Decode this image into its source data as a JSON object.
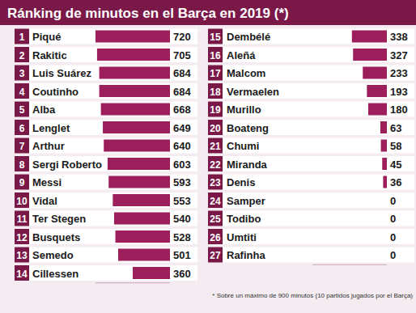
{
  "chart_data": {
    "type": "bar",
    "orientation": "horizontal",
    "title": "Ránking de minutos en el Barça en 2019 (*)",
    "categories": [
      "Piqué",
      "Rakitic",
      "Luis Suárez",
      "Coutinho",
      "Alba",
      "Lenglet",
      "Arthur",
      "Sergi Roberto",
      "Messi",
      "Vidal",
      "Ter Stegen",
      "Busquets",
      "Semedo",
      "Cillessen",
      "Dembélé",
      "Aleñá",
      "Malcom",
      "Vermaelen",
      "Murillo",
      "Boateng",
      "Chumi",
      "Miranda",
      "Denis",
      "Samper",
      "Todibo",
      "Umtiti",
      "Rafinha"
    ],
    "ranks": [
      1,
      2,
      3,
      4,
      5,
      6,
      7,
      8,
      9,
      10,
      11,
      12,
      13,
      14,
      15,
      16,
      17,
      18,
      19,
      20,
      21,
      22,
      23,
      24,
      25,
      26,
      27
    ],
    "values": [
      720,
      705,
      684,
      684,
      668,
      649,
      640,
      603,
      593,
      553,
      540,
      528,
      501,
      360,
      338,
      327,
      233,
      193,
      180,
      63,
      58,
      45,
      36,
      0,
      0,
      0,
      0
    ],
    "color": "#9c1f5c",
    "xlim": [
      0,
      720
    ],
    "tick_labels": false,
    "data_labels": true,
    "annotations": [
      "* Sobre un máximo de 900 minutos (10 partidos jugados por el Barça)"
    ]
  }
}
